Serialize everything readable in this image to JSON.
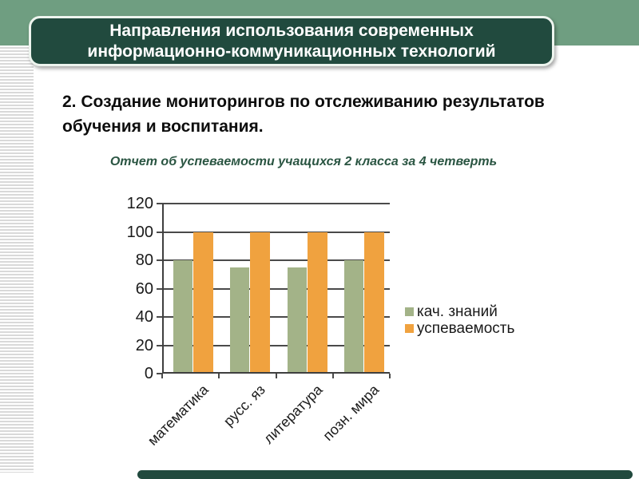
{
  "header": {
    "line1": "Направления использования современных",
    "line2": "информационно-коммуникационных технологий"
  },
  "body": {
    "line1": "2. Создание мониторингов  по отслеживанию результатов",
    "line2": "обучения и воспитания."
  },
  "theme": {
    "band_green": "#6F9E81",
    "box_dark_green": "#214A3E",
    "chart_title_green": "#2A5542"
  },
  "chart_data": {
    "type": "bar",
    "title": "Отчет об успеваемости учащихся 2 класса за 4 четверть",
    "categories": [
      "математика",
      "русс. яз",
      "литература",
      "позн. мира"
    ],
    "series": [
      {
        "name": "кач. знаний",
        "color": "#A3B388",
        "values": [
          80,
          75,
          75,
          80
        ]
      },
      {
        "name": "успеваемость",
        "color": "#F0A23F",
        "values": [
          100,
          100,
          100,
          100
        ]
      }
    ],
    "xlabel": "",
    "ylabel": "",
    "ylim": [
      0,
      120
    ],
    "yticks": [
      0,
      20,
      40,
      60,
      80,
      100,
      120
    ],
    "grid": true,
    "legend_position": "right"
  }
}
